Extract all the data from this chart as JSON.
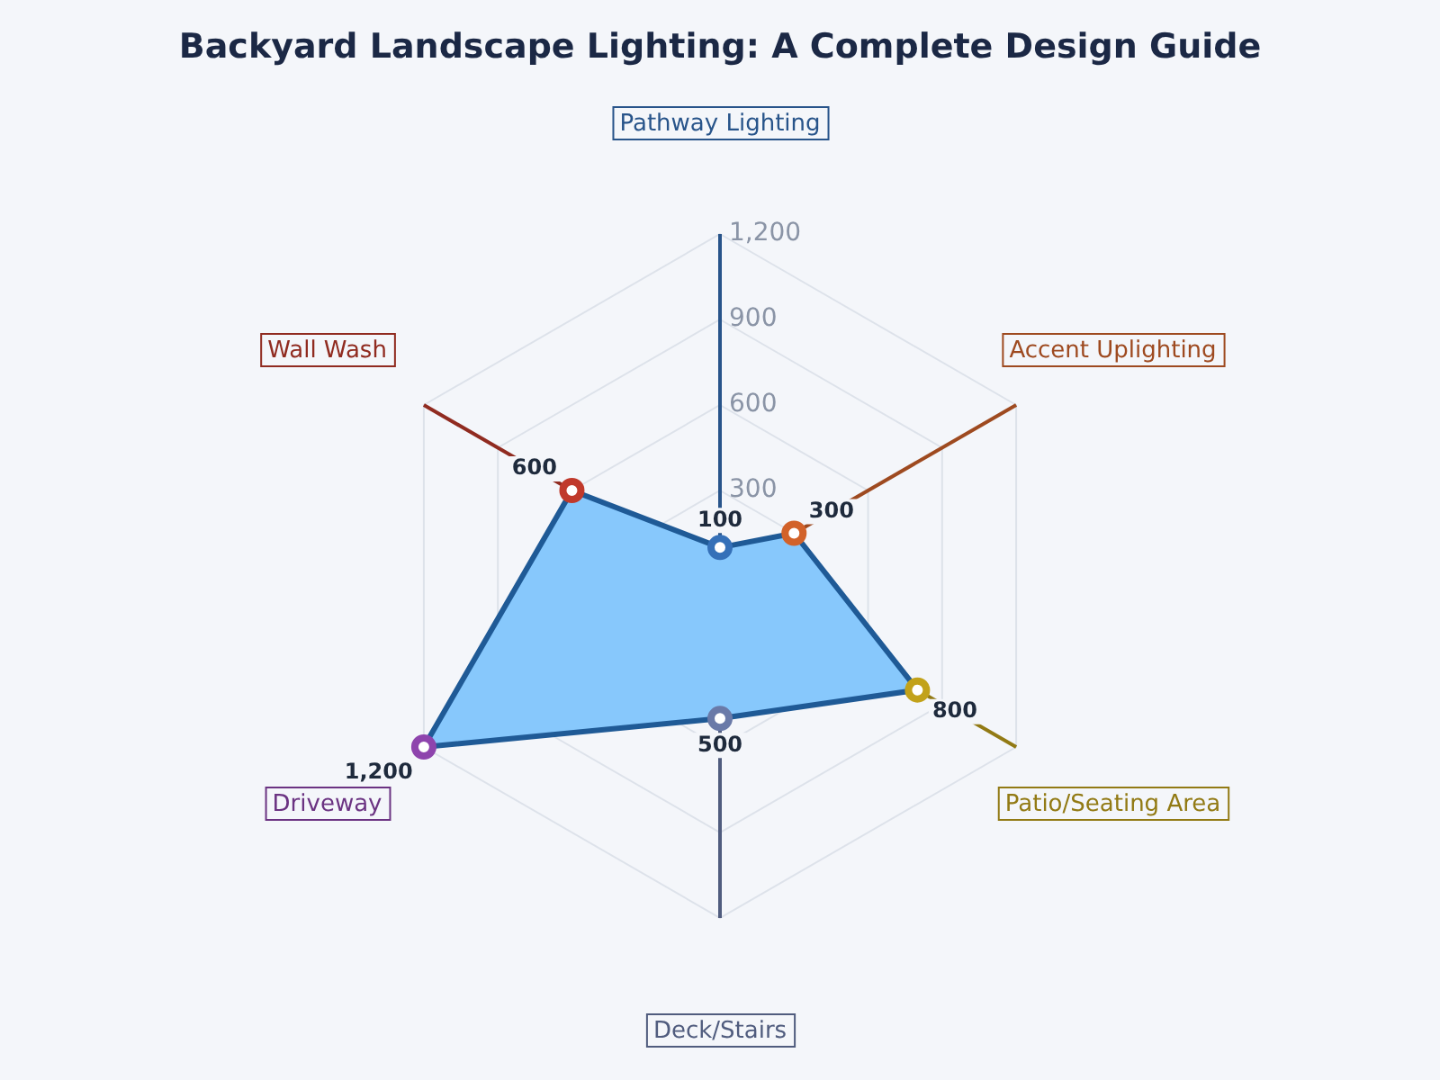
{
  "chart_data": {
    "type": "radar",
    "title": "Backyard Landscape Lighting: A Complete Design Guide",
    "categories": [
      "Pathway Lighting",
      "Accent Uplighting",
      "Patio/Seating Area",
      "Deck/Stairs",
      "Driveway",
      "Wall Wash"
    ],
    "series": [
      {
        "color": "#1f5a96",
        "colors": [
          "#3570b8",
          "#d2622a",
          "#c2a21a",
          "#6a7aa8",
          "#8e44ad",
          "#c0392b"
        ],
        "values": [
          100,
          300,
          800,
          500,
          1200,
          600
        ],
        "value_labels": [
          "100",
          "300",
          "800",
          "500",
          "1,200",
          "600"
        ]
      }
    ],
    "ylim": [
      0,
      1200
    ],
    "yticks": [
      300,
      600,
      900,
      {
        "value": 1200,
        "label": "1,200"
      }
    ],
    "grid": true,
    "marker": "circle"
  }
}
